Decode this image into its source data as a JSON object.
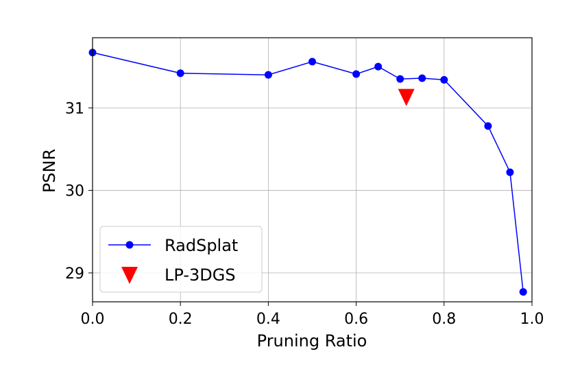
{
  "chart_data": {
    "type": "line",
    "xlabel": "Pruning Ratio",
    "ylabel": "PSNR",
    "xlim": [
      0.0,
      1.0
    ],
    "ylim": [
      28.65,
      31.85
    ],
    "x_ticks": [
      "0.0",
      "0.2",
      "0.4",
      "0.6",
      "0.8",
      "1.0"
    ],
    "y_ticks": [
      "29",
      "30",
      "31"
    ],
    "grid": true,
    "legend_position": "lower-left",
    "series": [
      {
        "name": "RadSplat",
        "type": "line",
        "marker": "circle",
        "color": "#0000ff",
        "x": [
          0.0,
          0.2,
          0.4,
          0.5,
          0.6,
          0.65,
          0.7,
          0.75,
          0.8,
          0.9,
          0.95,
          0.98
        ],
        "y": [
          31.67,
          31.42,
          31.4,
          31.56,
          31.41,
          31.5,
          31.35,
          31.36,
          31.34,
          30.78,
          30.22,
          28.77
        ]
      },
      {
        "name": "LP-3DGS",
        "type": "scatter",
        "marker": "triangle-down",
        "color": "#ff0000",
        "x": [
          0.714
        ],
        "y": [
          31.13
        ]
      }
    ]
  }
}
